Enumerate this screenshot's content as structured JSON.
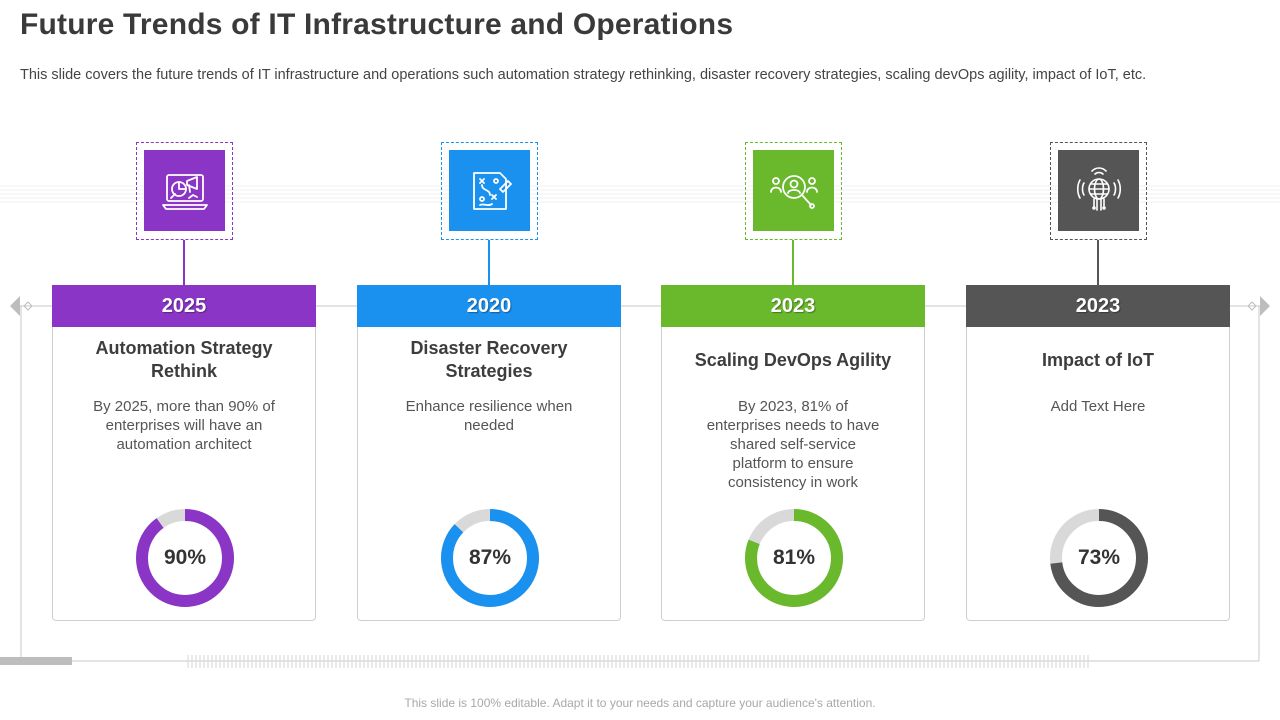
{
  "slide": {
    "title": "Future Trends of IT Infrastructure and Operations",
    "subtitle": "This slide covers the future trends of IT infrastructure  and operations such automation strategy rethinking, disaster recovery  strategies, scaling devOps agility, impact of IoT,  etc.",
    "footer": "This slide is 100% editable. Adapt it to your needs and capture your audience's attention."
  },
  "cards": [
    {
      "year": "2025",
      "title": "Automation Strategy Rethink",
      "text": "By 2025, more than 90% of enterprises will have an automation architect",
      "percent_label": "90%",
      "percent": 90,
      "color": "#8a35c5",
      "icon": "laptop-megaphone-chart-icon"
    },
    {
      "year": "2020",
      "title": "Disaster Recovery Strategies",
      "text": "Enhance resilience when needed",
      "percent_label": "87%",
      "percent": 87,
      "color": "#1a90ef",
      "icon": "strategy-plan-icon"
    },
    {
      "year": "2023",
      "title": "Scaling DevOps Agility",
      "text": "By 2023, 81% of enterprises needs to have shared self-service platform to ensure consistency in work",
      "percent_label": "81%",
      "percent": 81,
      "color": "#6ab82c",
      "icon": "team-search-icon"
    },
    {
      "year": "2023",
      "title": "Impact of IoT",
      "text": "Add Text Here",
      "percent_label": "73%",
      "percent": 73,
      "color": "#555555",
      "icon": "iot-globe-icon"
    }
  ],
  "colors": {
    "track": "#d9d9d9",
    "line": "#c8c8c8"
  }
}
